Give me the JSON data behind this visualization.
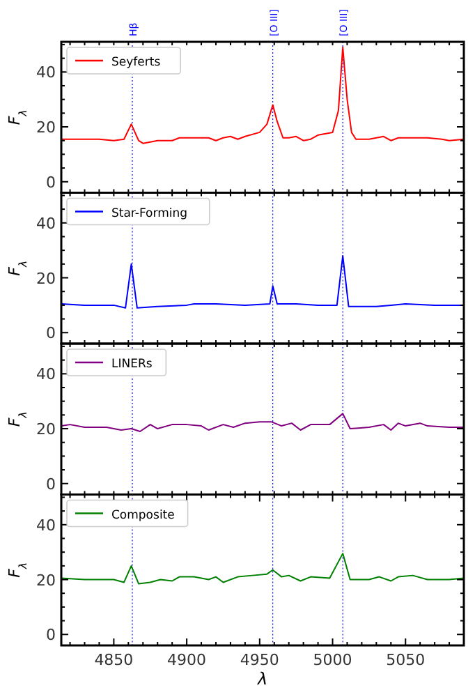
{
  "chart_data": [
    {
      "type": "line",
      "ylabel": "F$_{λ}$",
      "xlim": [
        4814,
        5090
      ],
      "ylim": [
        -4,
        51
      ],
      "grid": false,
      "legend": "top left",
      "tick_labels": "y",
      "xticks": [
        {
          "value": 4820,
          "label": null
        },
        {
          "value": 4830,
          "label": null
        },
        {
          "value": 4840,
          "label": null
        },
        {
          "value": 4850,
          "label": null
        },
        {
          "value": 4860,
          "label": null
        },
        {
          "value": 4870,
          "label": null
        },
        {
          "value": 4880,
          "label": null
        },
        {
          "value": 4890,
          "label": null
        },
        {
          "value": 4900,
          "label": null
        },
        {
          "value": 4910,
          "label": null
        },
        {
          "value": 4920,
          "label": null
        },
        {
          "value": 4930,
          "label": null
        },
        {
          "value": 4940,
          "label": null
        },
        {
          "value": 4950,
          "label": null
        },
        {
          "value": 4960,
          "label": null
        },
        {
          "value": 4970,
          "label": null
        },
        {
          "value": 4980,
          "label": null
        },
        {
          "value": 4990,
          "label": null
        },
        {
          "value": 5000,
          "label": null
        },
        {
          "value": 5010,
          "label": null
        },
        {
          "value": 5020,
          "label": null
        },
        {
          "value": 5030,
          "label": null
        },
        {
          "value": 5040,
          "label": null
        },
        {
          "value": 5050,
          "label": null
        },
        {
          "value": 5060,
          "label": null
        },
        {
          "value": 5070,
          "label": null
        },
        {
          "value": 5080,
          "label": null
        }
      ],
      "yticks": [
        0,
        {
          "value": 5,
          "label": null
        },
        {
          "value": 10,
          "label": null
        },
        {
          "value": 15,
          "label": null
        },
        20,
        {
          "value": 25,
          "label": null
        },
        {
          "value": 30,
          "label": null
        },
        {
          "value": 35,
          "label": null
        },
        40,
        {
          "value": 45,
          "label": null
        },
        {
          "value": 50,
          "label": null
        }
      ],
      "ref_lines": [
        {
          "axis": "x",
          "value": 4862.7,
          "label": "Hβ",
          "color": "#0000ff",
          "line_style": "dotted"
        },
        {
          "axis": "x",
          "value": 4959,
          "label": "[O III]",
          "color": "#0000ff",
          "line_style": "dotted"
        },
        {
          "axis": "x",
          "value": 5007,
          "label": "[O III]",
          "color": "#0000ff",
          "line_style": "dotted"
        }
      ],
      "series": [
        {
          "name": "Seyferts",
          "color": "#ff0000",
          "x": [
            4814,
            4825,
            4840,
            4850,
            4857,
            4862,
            4867,
            4870,
            4875,
            4880,
            4890,
            4895,
            4905,
            4915,
            4920,
            4925,
            4930,
            4935,
            4940,
            4950,
            4955,
            4959,
            4962,
            4966,
            4970,
            4975,
            4980,
            4985,
            4990,
            5000,
            5004,
            5007,
            5010,
            5013,
            5016,
            5025,
            5030,
            5035,
            5040,
            5045,
            5055,
            5065,
            5075,
            5080,
            5090
          ],
          "values": [
            15.5,
            15.5,
            15.5,
            15,
            15.5,
            21,
            15,
            14,
            14.5,
            15,
            15,
            16,
            16,
            16,
            15,
            16,
            16.5,
            15.5,
            16.5,
            18,
            21,
            28,
            22,
            16,
            16,
            16.5,
            15,
            15.5,
            17,
            18,
            26,
            49,
            30,
            18,
            15.5,
            15.5,
            16,
            16.5,
            15,
            16,
            16,
            16,
            15.5,
            15,
            15.5
          ]
        }
      ]
    },
    {
      "type": "line",
      "ylabel": "F$_{λ}$",
      "xlim": [
        4814,
        5090
      ],
      "ylim": [
        -4,
        51
      ],
      "grid": false,
      "legend": "top left",
      "tick_labels": "y",
      "xticks": [
        {
          "value": 4820,
          "label": null
        },
        {
          "value": 4830,
          "label": null
        },
        {
          "value": 4840,
          "label": null
        },
        {
          "value": 4850,
          "label": null
        },
        {
          "value": 4860,
          "label": null
        },
        {
          "value": 4870,
          "label": null
        },
        {
          "value": 4880,
          "label": null
        },
        {
          "value": 4890,
          "label": null
        },
        {
          "value": 4900,
          "label": null
        },
        {
          "value": 4910,
          "label": null
        },
        {
          "value": 4920,
          "label": null
        },
        {
          "value": 4930,
          "label": null
        },
        {
          "value": 4940,
          "label": null
        },
        {
          "value": 4950,
          "label": null
        },
        {
          "value": 4960,
          "label": null
        },
        {
          "value": 4970,
          "label": null
        },
        {
          "value": 4980,
          "label": null
        },
        {
          "value": 4990,
          "label": null
        },
        {
          "value": 5000,
          "label": null
        },
        {
          "value": 5010,
          "label": null
        },
        {
          "value": 5020,
          "label": null
        },
        {
          "value": 5030,
          "label": null
        },
        {
          "value": 5040,
          "label": null
        },
        {
          "value": 5050,
          "label": null
        },
        {
          "value": 5060,
          "label": null
        },
        {
          "value": 5070,
          "label": null
        },
        {
          "value": 5080,
          "label": null
        }
      ],
      "yticks": [
        0,
        {
          "value": 5,
          "label": null
        },
        {
          "value": 10,
          "label": null
        },
        {
          "value": 15,
          "label": null
        },
        20,
        {
          "value": 25,
          "label": null
        },
        {
          "value": 30,
          "label": null
        },
        {
          "value": 35,
          "label": null
        },
        40,
        {
          "value": 45,
          "label": null
        },
        {
          "value": 50,
          "label": null
        }
      ],
      "ref_lines": [
        {
          "axis": "x",
          "value": 4862.7,
          "color": "#0000ff",
          "line_style": "dotted"
        },
        {
          "axis": "x",
          "value": 4959,
          "color": "#0000ff",
          "line_style": "dotted"
        },
        {
          "axis": "x",
          "value": 5007,
          "color": "#0000ff",
          "line_style": "dotted"
        }
      ],
      "series": [
        {
          "name": "Star-Forming",
          "color": "#0000ff",
          "x": [
            4814,
            4830,
            4850,
            4858,
            4862,
            4866,
            4880,
            4900,
            4905,
            4920,
            4940,
            4957,
            4959,
            4962,
            4975,
            4990,
            5003,
            5007,
            5011,
            5030,
            5040,
            5050,
            5070,
            5090
          ],
          "values": [
            10.5,
            10,
            10,
            9,
            25,
            9,
            9.5,
            10,
            10.5,
            10.5,
            10,
            10.5,
            17,
            10.5,
            10.5,
            10,
            10,
            28,
            9.5,
            9.5,
            10,
            10.5,
            10,
            10
          ]
        }
      ]
    },
    {
      "type": "line",
      "ylabel": "F$_{λ}$",
      "xlim": [
        4814,
        5090
      ],
      "ylim": [
        -4,
        51
      ],
      "grid": false,
      "legend": "top left",
      "tick_labels": "y",
      "xticks": [
        {
          "value": 4820,
          "label": null
        },
        {
          "value": 4830,
          "label": null
        },
        {
          "value": 4840,
          "label": null
        },
        {
          "value": 4850,
          "label": null
        },
        {
          "value": 4860,
          "label": null
        },
        {
          "value": 4870,
          "label": null
        },
        {
          "value": 4880,
          "label": null
        },
        {
          "value": 4890,
          "label": null
        },
        {
          "value": 4900,
          "label": null
        },
        {
          "value": 4910,
          "label": null
        },
        {
          "value": 4920,
          "label": null
        },
        {
          "value": 4930,
          "label": null
        },
        {
          "value": 4940,
          "label": null
        },
        {
          "value": 4950,
          "label": null
        },
        {
          "value": 4960,
          "label": null
        },
        {
          "value": 4970,
          "label": null
        },
        {
          "value": 4980,
          "label": null
        },
        {
          "value": 4990,
          "label": null
        },
        {
          "value": 5000,
          "label": null
        },
        {
          "value": 5010,
          "label": null
        },
        {
          "value": 5020,
          "label": null
        },
        {
          "value": 5030,
          "label": null
        },
        {
          "value": 5040,
          "label": null
        },
        {
          "value": 5050,
          "label": null
        },
        {
          "value": 5060,
          "label": null
        },
        {
          "value": 5070,
          "label": null
        },
        {
          "value": 5080,
          "label": null
        }
      ],
      "yticks": [
        0,
        {
          "value": 5,
          "label": null
        },
        {
          "value": 10,
          "label": null
        },
        {
          "value": 15,
          "label": null
        },
        20,
        {
          "value": 25,
          "label": null
        },
        {
          "value": 30,
          "label": null
        },
        {
          "value": 35,
          "label": null
        },
        40,
        {
          "value": 45,
          "label": null
        },
        {
          "value": 50,
          "label": null
        }
      ],
      "ref_lines": [
        {
          "axis": "x",
          "value": 4862.7,
          "color": "#0000ff",
          "line_style": "dotted"
        },
        {
          "axis": "x",
          "value": 4959,
          "color": "#0000ff",
          "line_style": "dotted"
        },
        {
          "axis": "x",
          "value": 5007,
          "color": "#0000ff",
          "line_style": "dotted"
        }
      ],
      "series": [
        {
          "name": "LINERs",
          "color": "#800080",
          "x": [
            4814,
            4820,
            4830,
            4845,
            4855,
            4862,
            4868,
            4875,
            4880,
            4890,
            4900,
            4910,
            4915,
            4925,
            4932,
            4940,
            4950,
            4958,
            4965,
            4972,
            4978,
            4985,
            4998,
            5007,
            5012,
            5025,
            5035,
            5040,
            5045,
            5050,
            5060,
            5065,
            5080,
            5090
          ],
          "values": [
            21,
            21.5,
            20.5,
            20.5,
            19.5,
            20,
            19,
            21.5,
            20,
            21.5,
            21.5,
            21,
            19.5,
            21.5,
            20.5,
            22,
            22.5,
            22.5,
            21,
            22,
            19.5,
            21.5,
            21.5,
            25.5,
            20,
            20.5,
            21.5,
            19.5,
            22,
            21,
            22,
            21,
            20.5,
            20.5
          ]
        }
      ]
    },
    {
      "type": "line",
      "ylabel": "F$_{λ}$",
      "xlabel": "λ",
      "xlim": [
        4814,
        5090
      ],
      "ylim": [
        -4,
        51
      ],
      "grid": false,
      "legend": "top left",
      "xticks": [
        {
          "value": 4820,
          "label": null
        },
        {
          "value": 4830,
          "label": null
        },
        {
          "value": 4840,
          "label": null
        },
        4850,
        {
          "value": 4860,
          "label": null
        },
        {
          "value": 4870,
          "label": null
        },
        {
          "value": 4880,
          "label": null
        },
        {
          "value": 4890,
          "label": null
        },
        4900,
        {
          "value": 4910,
          "label": null
        },
        {
          "value": 4920,
          "label": null
        },
        {
          "value": 4930,
          "label": null
        },
        {
          "value": 4940,
          "label": null
        },
        4950,
        {
          "value": 4960,
          "label": null
        },
        {
          "value": 4970,
          "label": null
        },
        {
          "value": 4980,
          "label": null
        },
        {
          "value": 4990,
          "label": null
        },
        5000,
        {
          "value": 5010,
          "label": null
        },
        {
          "value": 5020,
          "label": null
        },
        {
          "value": 5030,
          "label": null
        },
        {
          "value": 5040,
          "label": null
        },
        5050,
        {
          "value": 5060,
          "label": null
        },
        {
          "value": 5070,
          "label": null
        },
        {
          "value": 5080,
          "label": null
        }
      ],
      "yticks": [
        0,
        {
          "value": 5,
          "label": null
        },
        {
          "value": 10,
          "label": null
        },
        {
          "value": 15,
          "label": null
        },
        20,
        {
          "value": 25,
          "label": null
        },
        {
          "value": 30,
          "label": null
        },
        {
          "value": 35,
          "label": null
        },
        40,
        {
          "value": 45,
          "label": null
        },
        {
          "value": 50,
          "label": null
        }
      ],
      "ref_lines": [
        {
          "axis": "x",
          "value": 4862.7,
          "color": "#0000ff",
          "line_style": "dotted"
        },
        {
          "axis": "x",
          "value": 4959,
          "color": "#0000ff",
          "line_style": "dotted"
        },
        {
          "axis": "x",
          "value": 5007,
          "color": "#0000ff",
          "line_style": "dotted"
        }
      ],
      "series": [
        {
          "name": "Composite",
          "color": "#008000",
          "x": [
            4814,
            4830,
            4850,
            4857,
            4862,
            4867,
            4875,
            4882,
            4890,
            4895,
            4905,
            4915,
            4920,
            4925,
            4935,
            4945,
            4955,
            4959,
            4965,
            4970,
            4978,
            4985,
            4998,
            5007,
            5012,
            5025,
            5032,
            5040,
            5045,
            5055,
            5065,
            5080,
            5090
          ],
          "values": [
            20.5,
            20,
            20,
            19,
            25,
            18.5,
            19,
            20,
            19.5,
            21,
            21,
            20,
            21,
            19,
            21,
            21.5,
            22,
            23.5,
            21,
            21.5,
            19.5,
            21,
            20.5,
            29.5,
            20,
            20,
            21,
            19.5,
            21,
            21.5,
            20,
            20,
            20.5
          ]
        }
      ]
    }
  ]
}
